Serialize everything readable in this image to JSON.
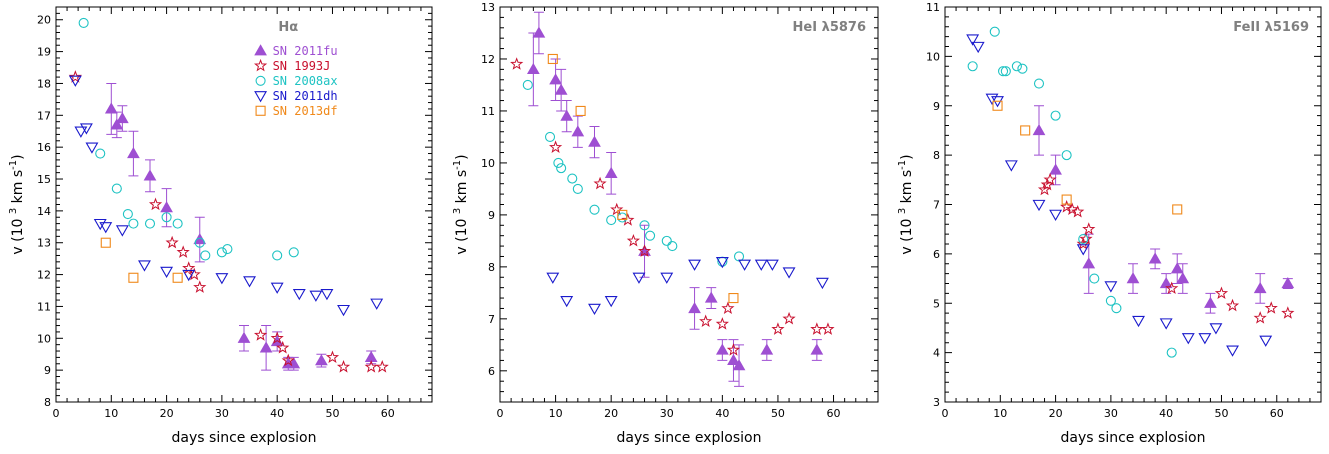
{
  "figure": {
    "xlabel": "days since explosion",
    "ylabel": "v (10 3 km s-1)"
  },
  "series_styles": [
    {
      "name": "SN 2011fu",
      "color": "#9e4fd2",
      "marker": "filled-triangle"
    },
    {
      "name": "SN 1993J",
      "color": "#c8102e",
      "marker": "open-star"
    },
    {
      "name": "SN 2008ax",
      "color": "#1ec3c3",
      "marker": "open-circle"
    },
    {
      "name": "SN 2011dh",
      "color": "#1a1acc",
      "marker": "open-down-triangle"
    },
    {
      "name": "SN 2013df",
      "color": "#f0891a",
      "marker": "open-square"
    }
  ],
  "chart_data": [
    {
      "type": "scatter",
      "title": "Hα",
      "xlabel": "days since explosion",
      "ylabel": "v (10 3 km s-1)",
      "xlim": [
        0,
        68
      ],
      "ylim": [
        8,
        20.4
      ],
      "xticks": [
        0,
        10,
        20,
        30,
        40,
        50,
        60
      ],
      "yticks": [
        8,
        9,
        10,
        11,
        12,
        13,
        14,
        15,
        16,
        17,
        18,
        19,
        20
      ],
      "legend": "top-right",
      "series": [
        {
          "name": "SN 2011fu",
          "points": [
            [
              10,
              17.2,
              0.8
            ],
            [
              11,
              16.7,
              0.4
            ],
            [
              12,
              16.9,
              0.4
            ],
            [
              14,
              15.8,
              0.7
            ],
            [
              17,
              15.1,
              0.5
            ],
            [
              20,
              14.1,
              0.6
            ],
            [
              26,
              13.1,
              0.7
            ],
            [
              34,
              10.0,
              0.4
            ],
            [
              38,
              9.7,
              0.7
            ],
            [
              40,
              9.9,
              0.3
            ],
            [
              42,
              9.2,
              0.2
            ],
            [
              43,
              9.2,
              0.2
            ],
            [
              48,
              9.3,
              0.2
            ],
            [
              57,
              9.4,
              0.2
            ]
          ]
        },
        {
          "name": "SN 1993J",
          "points": [
            [
              3.5,
              18.2
            ],
            [
              18,
              14.2
            ],
            [
              21,
              13.0
            ],
            [
              23,
              12.7
            ],
            [
              24,
              12.2
            ],
            [
              25,
              12.0
            ],
            [
              26,
              11.6
            ],
            [
              37,
              10.1
            ],
            [
              40,
              10.0
            ],
            [
              41,
              9.7
            ],
            [
              42,
              9.3
            ],
            [
              50,
              9.4
            ],
            [
              52,
              9.1
            ],
            [
              57,
              9.1
            ],
            [
              59,
              9.1
            ]
          ]
        },
        {
          "name": "SN 2008ax",
          "points": [
            [
              5,
              19.9
            ],
            [
              8,
              15.8
            ],
            [
              11,
              14.7
            ],
            [
              13,
              13.9
            ],
            [
              14,
              13.6
            ],
            [
              17,
              13.6
            ],
            [
              20,
              13.8
            ],
            [
              22,
              13.6
            ],
            [
              26,
              13.0
            ],
            [
              27,
              12.6
            ],
            [
              30,
              12.7
            ],
            [
              31,
              12.8
            ],
            [
              40,
              12.6
            ],
            [
              43,
              12.7
            ]
          ]
        },
        {
          "name": "SN 2011dh",
          "points": [
            [
              3.5,
              18.1
            ],
            [
              4.5,
              16.5
            ],
            [
              5.5,
              16.6
            ],
            [
              6.5,
              16.0
            ],
            [
              8,
              13.6
            ],
            [
              9,
              13.5
            ],
            [
              12,
              13.4
            ],
            [
              16,
              12.3
            ],
            [
              20,
              12.1
            ],
            [
              24,
              12.0
            ],
            [
              30,
              11.9
            ],
            [
              35,
              11.8
            ],
            [
              40,
              11.6
            ],
            [
              44,
              11.4
            ],
            [
              47,
              11.35
            ],
            [
              49,
              11.4
            ],
            [
              52,
              10.9
            ],
            [
              58,
              11.1
            ]
          ]
        },
        {
          "name": "SN 2013df",
          "points": [
            [
              9,
              13.0
            ],
            [
              14,
              11.9
            ],
            [
              22,
              11.9
            ]
          ]
        }
      ]
    },
    {
      "type": "scatter",
      "title": "HeI λ5876",
      "xlabel": "days since explosion",
      "ylabel": "v (10 3 km s-1)",
      "xlim": [
        0,
        68
      ],
      "ylim": [
        5.4,
        13
      ],
      "xticks": [
        0,
        10,
        20,
        30,
        40,
        50,
        60
      ],
      "yticks": [
        6,
        7,
        8,
        9,
        10,
        11,
        12,
        13
      ],
      "series": [
        {
          "name": "SN 2011fu",
          "points": [
            [
              6,
              11.8,
              0.7
            ],
            [
              7,
              12.5,
              0.4
            ],
            [
              10,
              11.6,
              0.4
            ],
            [
              11,
              11.4,
              0.4
            ],
            [
              12,
              10.9,
              0.3
            ],
            [
              14,
              10.6,
              0.3
            ],
            [
              17,
              10.4,
              0.3
            ],
            [
              20,
              9.8,
              0.4
            ],
            [
              26,
              8.3,
              0.5
            ],
            [
              35,
              7.2,
              0.4
            ],
            [
              38,
              7.4,
              0.2
            ],
            [
              40,
              6.4,
              0.2
            ],
            [
              42,
              6.2,
              0.4
            ],
            [
              43,
              6.1,
              0.4
            ],
            [
              48,
              6.4,
              0.2
            ],
            [
              57,
              6.4,
              0.2
            ]
          ]
        },
        {
          "name": "SN 1993J",
          "points": [
            [
              3,
              11.9
            ],
            [
              10,
              10.3
            ],
            [
              18,
              9.6
            ],
            [
              21,
              9.1
            ],
            [
              23,
              8.9
            ],
            [
              24,
              8.5
            ],
            [
              26,
              8.3
            ],
            [
              37,
              6.95
            ],
            [
              40,
              6.9
            ],
            [
              41,
              7.2
            ],
            [
              42,
              6.4
            ],
            [
              50,
              6.8
            ],
            [
              52,
              7.0
            ],
            [
              57,
              6.8
            ],
            [
              59,
              6.8
            ]
          ]
        },
        {
          "name": "SN 2008ax",
          "points": [
            [
              5,
              11.5
            ],
            [
              9,
              10.5
            ],
            [
              10.5,
              10.0
            ],
            [
              11,
              9.9
            ],
            [
              13,
              9.7
            ],
            [
              14,
              9.5
            ],
            [
              17,
              9.1
            ],
            [
              20,
              8.9
            ],
            [
              22,
              8.95
            ],
            [
              26,
              8.8
            ],
            [
              27,
              8.6
            ],
            [
              30,
              8.5
            ],
            [
              31,
              8.4
            ],
            [
              40,
              8.1
            ],
            [
              43,
              8.2
            ]
          ]
        },
        {
          "name": "SN 2011dh",
          "points": [
            [
              9.5,
              7.8
            ],
            [
              12,
              7.35
            ],
            [
              17,
              7.2
            ],
            [
              20,
              7.35
            ],
            [
              25,
              7.8
            ],
            [
              30,
              7.8
            ],
            [
              35,
              8.05
            ],
            [
              40,
              8.1
            ],
            [
              44,
              8.05
            ],
            [
              47,
              8.05
            ],
            [
              49,
              8.05
            ],
            [
              52,
              7.9
            ],
            [
              58,
              7.7
            ]
          ]
        },
        {
          "name": "SN 2013df",
          "points": [
            [
              9.5,
              12.0
            ],
            [
              14.5,
              11.0
            ],
            [
              22,
              9.0
            ],
            [
              42,
              7.4
            ]
          ]
        }
      ]
    },
    {
      "type": "scatter",
      "title": "FeII λ5169",
      "xlabel": "days since explosion",
      "ylabel": "v (10 3 km s-1)",
      "xlim": [
        0,
        68
      ],
      "ylim": [
        3,
        11
      ],
      "xticks": [
        0,
        10,
        20,
        30,
        40,
        50,
        60
      ],
      "yticks": [
        3,
        4,
        5,
        6,
        7,
        8,
        9,
        10,
        11
      ],
      "series": [
        {
          "name": "SN 2011fu",
          "points": [
            [
              17,
              8.5,
              0.5
            ],
            [
              20,
              7.7,
              0.3
            ],
            [
              26,
              5.8,
              0.6
            ],
            [
              34,
              5.5,
              0.3
            ],
            [
              38,
              5.9,
              0.2
            ],
            [
              40,
              5.4,
              0.2
            ],
            [
              42,
              5.7,
              0.3
            ],
            [
              43,
              5.5,
              0.3
            ],
            [
              48,
              5.0,
              0.2
            ],
            [
              57,
              5.3,
              0.3
            ],
            [
              62,
              5.4,
              0.1
            ]
          ]
        },
        {
          "name": "SN 1993J",
          "points": [
            [
              18,
              7.3
            ],
            [
              18.5,
              7.4
            ],
            [
              19,
              7.5
            ],
            [
              22,
              6.95
            ],
            [
              23,
              6.9
            ],
            [
              24,
              6.85
            ],
            [
              25,
              6.2
            ],
            [
              25.5,
              6.3
            ],
            [
              26,
              6.5
            ],
            [
              41,
              5.3
            ],
            [
              50,
              5.2
            ],
            [
              52,
              4.95
            ],
            [
              57,
              4.7
            ],
            [
              59,
              4.9
            ],
            [
              62,
              4.8
            ]
          ]
        },
        {
          "name": "SN 2008ax",
          "points": [
            [
              5,
              9.8
            ],
            [
              9,
              10.5
            ],
            [
              10.5,
              9.7
            ],
            [
              11,
              9.7
            ],
            [
              13,
              9.8
            ],
            [
              14,
              9.75
            ],
            [
              17,
              9.45
            ],
            [
              20,
              8.8
            ],
            [
              22,
              8.0
            ],
            [
              25,
              6.3
            ],
            [
              27,
              5.5
            ],
            [
              30,
              5.05
            ],
            [
              31,
              4.9
            ],
            [
              41,
              4.0
            ]
          ]
        },
        {
          "name": "SN 2011dh",
          "points": [
            [
              5,
              10.35
            ],
            [
              6,
              10.2
            ],
            [
              8.5,
              9.15
            ],
            [
              9.5,
              9.1
            ],
            [
              12,
              7.8
            ],
            [
              17,
              7.0
            ],
            [
              20,
              6.8
            ],
            [
              25,
              6.1
            ],
            [
              30,
              5.35
            ],
            [
              35,
              4.65
            ],
            [
              40,
              4.6
            ],
            [
              44,
              4.3
            ],
            [
              47,
              4.3
            ],
            [
              49,
              4.5
            ],
            [
              52,
              4.05
            ],
            [
              58,
              4.25
            ]
          ]
        },
        {
          "name": "SN 2013df",
          "points": [
            [
              9.5,
              9.0
            ],
            [
              14.5,
              8.5
            ],
            [
              22,
              7.1
            ],
            [
              42,
              6.9
            ]
          ]
        }
      ]
    }
  ]
}
